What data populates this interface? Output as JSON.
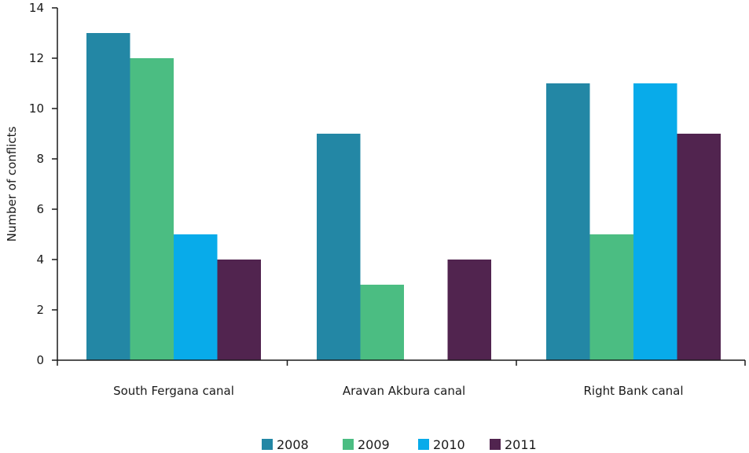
{
  "chart_data": {
    "type": "bar",
    "title": "",
    "xlabel": "",
    "ylabel": "Number of conflicts",
    "ylim": [
      0,
      14
    ],
    "yticks": [
      0,
      2,
      4,
      6,
      8,
      10,
      12,
      14
    ],
    "categories": [
      "South Fergana canal",
      "Aravan Akbura canal",
      "Right Bank canal"
    ],
    "series": [
      {
        "name": "2008",
        "color": "#2387a5",
        "values": [
          13,
          9,
          11
        ]
      },
      {
        "name": "2009",
        "color": "#4bbd82",
        "values": [
          12,
          3,
          5
        ]
      },
      {
        "name": "2010",
        "color": "#08abea",
        "values": [
          5,
          null,
          11
        ]
      },
      {
        "name": "2011",
        "color": "#51244f",
        "values": [
          4,
          4,
          9
        ]
      }
    ],
    "legend_position": "bottom",
    "grid": false
  }
}
